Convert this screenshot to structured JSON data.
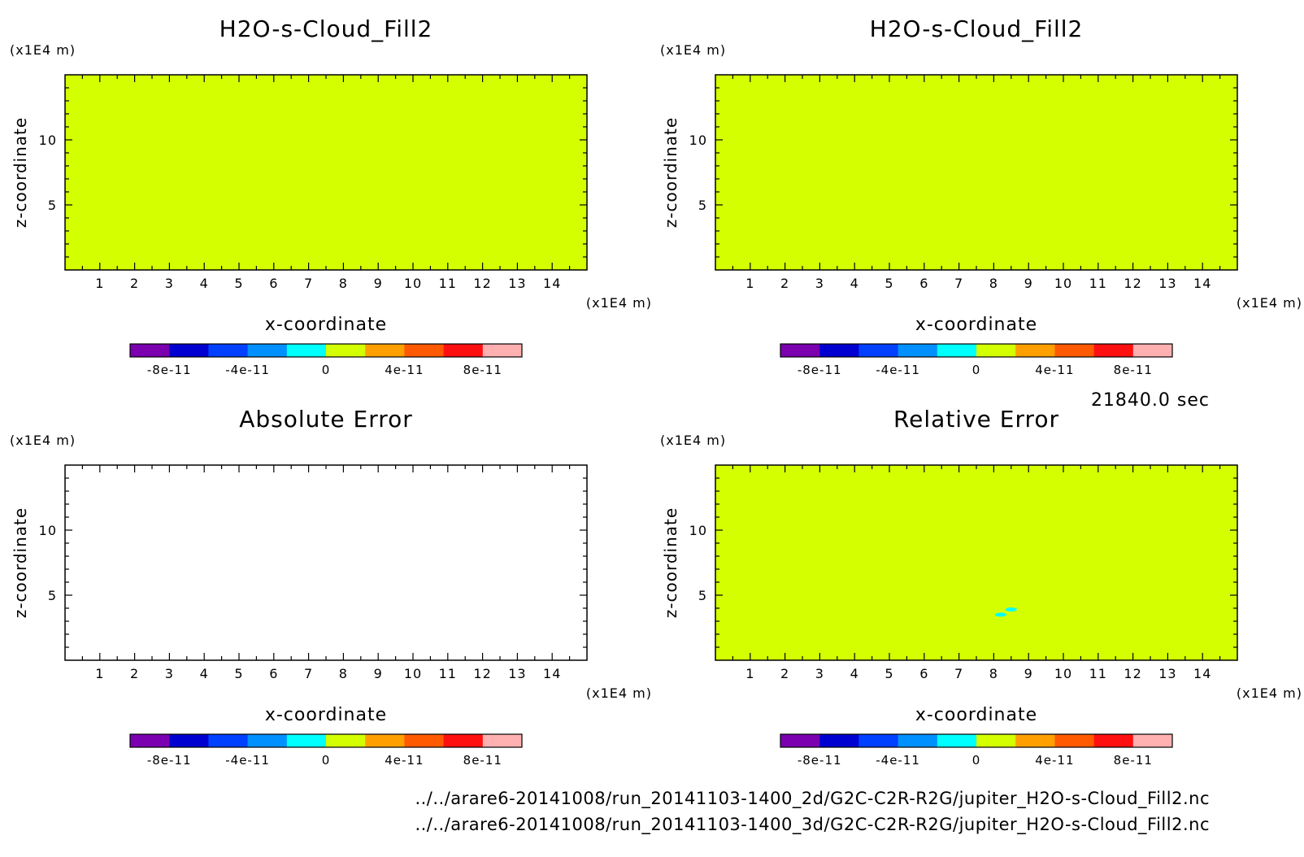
{
  "figure": {
    "time_label": "21840.0 sec",
    "file_paths": [
      "../../arare6-20141008/run_20141103-1400_2d/G2C-C2R-R2G/jupiter_H2O-s-Cloud_Fill2.nc",
      "../../arare6-20141008/run_20141103-1400_3d/G2C-C2R-R2G/jupiter_H2O-s-Cloud_Fill2.nc"
    ],
    "colors": {
      "background": "#ffffff",
      "field_fill": "#d4ff00",
      "colorbar": [
        "#7a00b0",
        "#0000d0",
        "#0040ff",
        "#0090ff",
        "#00ffff",
        "#d4ff00",
        "#ffa000",
        "#ff5a00",
        "#ff1010",
        "#ffb0b0"
      ]
    }
  },
  "chart_data": [
    {
      "type": "heatmap",
      "title": "H2O-s-Cloud_Fill2",
      "xlabel": "x-coordinate",
      "ylabel": "z-coordinate",
      "x_unit": "(x1E4 m)",
      "y_unit": "(x1E4 m)",
      "xlim": [
        0,
        15
      ],
      "ylim": [
        0,
        15
      ],
      "x_ticks": [
        "1",
        "2",
        "3",
        "4",
        "5",
        "6",
        "7",
        "8",
        "9",
        "10",
        "11",
        "12",
        "13",
        "14"
      ],
      "y_ticks": [
        "5",
        "10"
      ],
      "field": "uniform",
      "field_value": 0,
      "colorbar": {
        "range": [
          -1e-10,
          1e-10
        ],
        "levels": 10,
        "tick_labels": [
          "-8e-11",
          "-4e-11",
          "0",
          "4e-11",
          "8e-11"
        ]
      }
    },
    {
      "type": "heatmap",
      "title": "H2O-s-Cloud_Fill2",
      "xlabel": "x-coordinate",
      "ylabel": "z-coordinate",
      "x_unit": "(x1E4 m)",
      "y_unit": "(x1E4 m)",
      "xlim": [
        0,
        15
      ],
      "ylim": [
        0,
        15
      ],
      "x_ticks": [
        "1",
        "2",
        "3",
        "4",
        "5",
        "6",
        "7",
        "8",
        "9",
        "10",
        "11",
        "12",
        "13",
        "14"
      ],
      "y_ticks": [
        "5",
        "10"
      ],
      "field": "uniform",
      "field_value": 0,
      "colorbar": {
        "range": [
          -1e-10,
          1e-10
        ],
        "levels": 10,
        "tick_labels": [
          "-8e-11",
          "-4e-11",
          "0",
          "4e-11",
          "8e-11"
        ]
      }
    },
    {
      "type": "heatmap",
      "title": "Absolute Error",
      "xlabel": "x-coordinate",
      "ylabel": "z-coordinate",
      "x_unit": "(x1E4 m)",
      "y_unit": "(x1E4 m)",
      "xlim": [
        0,
        15
      ],
      "ylim": [
        0,
        15
      ],
      "x_ticks": [
        "1",
        "2",
        "3",
        "4",
        "5",
        "6",
        "7",
        "8",
        "9",
        "10",
        "11",
        "12",
        "13",
        "14"
      ],
      "y_ticks": [
        "5",
        "10"
      ],
      "field": "empty",
      "colorbar": {
        "range": [
          -1e-10,
          1e-10
        ],
        "levels": 10,
        "tick_labels": [
          "-8e-11",
          "-4e-11",
          "0",
          "4e-11",
          "8e-11"
        ]
      }
    },
    {
      "type": "heatmap",
      "title": "Relative Error",
      "xlabel": "x-coordinate",
      "ylabel": "z-coordinate",
      "x_unit": "(x1E4 m)",
      "y_unit": "(x1E4 m)",
      "xlim": [
        0,
        15
      ],
      "ylim": [
        0,
        15
      ],
      "x_ticks": [
        "1",
        "2",
        "3",
        "4",
        "5",
        "6",
        "7",
        "8",
        "9",
        "10",
        "11",
        "12",
        "13",
        "14"
      ],
      "y_ticks": [
        "5",
        "10"
      ],
      "field": "uniform",
      "field_value": 0,
      "anomalies": [
        {
          "x": 8.2,
          "z": 3.5,
          "color": "#00ffff"
        },
        {
          "x": 8.5,
          "z": 3.9,
          "color": "#00ffff"
        }
      ],
      "colorbar": {
        "range": [
          -1e-10,
          1e-10
        ],
        "levels": 10,
        "tick_labels": [
          "-8e-11",
          "-4e-11",
          "0",
          "4e-11",
          "8e-11"
        ]
      }
    }
  ]
}
